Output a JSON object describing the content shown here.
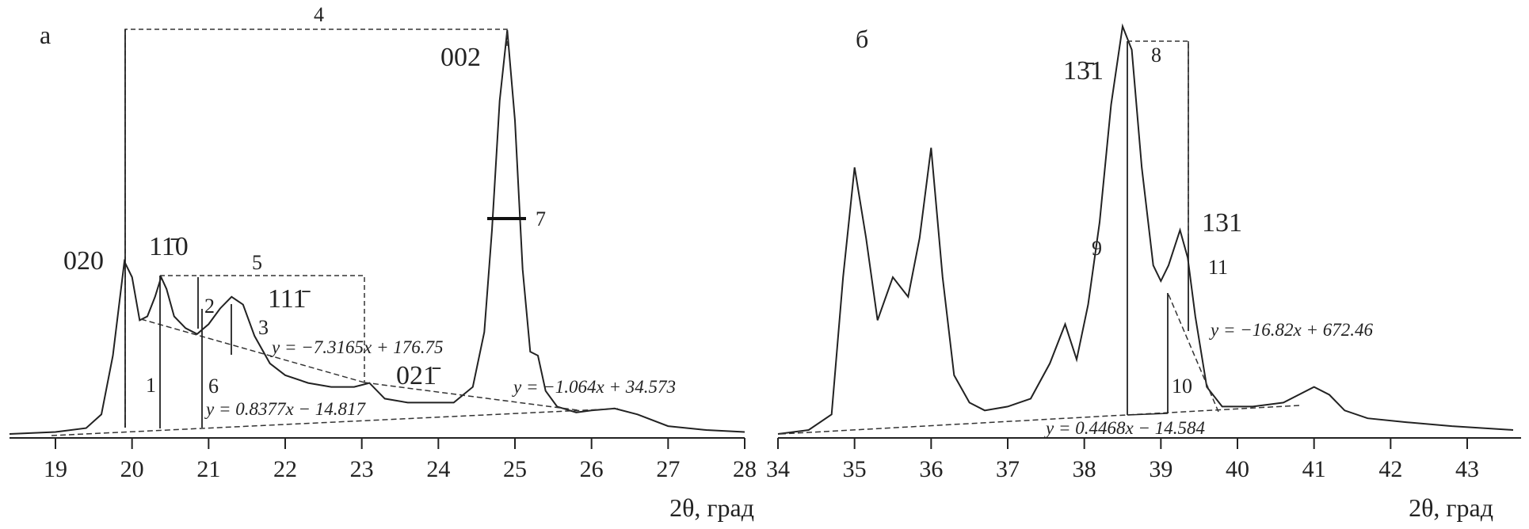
{
  "chart_data": [
    {
      "type": "line",
      "panel_label": "а",
      "xlabel": "2θ, град",
      "xlim": [
        18.4,
        28.0
      ],
      "ylim": [
        0,
        100
      ],
      "xticks": [
        19,
        20,
        21,
        22,
        23,
        24,
        25,
        26,
        27,
        28
      ],
      "x": [
        18.4,
        19.0,
        19.4,
        19.6,
        19.75,
        19.9,
        20.0,
        20.1,
        20.2,
        20.3,
        20.38,
        20.45,
        20.55,
        20.7,
        20.85,
        21.0,
        21.15,
        21.3,
        21.45,
        21.6,
        21.8,
        22.0,
        22.3,
        22.6,
        22.9,
        23.1,
        23.3,
        23.6,
        23.9,
        24.2,
        24.45,
        24.6,
        24.7,
        24.8,
        24.9,
        25.0,
        25.1,
        25.2,
        25.3,
        25.4,
        25.55,
        25.8,
        26.0,
        26.3,
        26.6,
        27.0,
        27.5,
        28.0
      ],
      "y": [
        0,
        0.5,
        1.5,
        5,
        20,
        44,
        40,
        29,
        30,
        35,
        40,
        37,
        30,
        27,
        25.5,
        28,
        32,
        35,
        33,
        25,
        18,
        15,
        13,
        12,
        12,
        13,
        9,
        8,
        8,
        8,
        12,
        26,
        52,
        85,
        103,
        80,
        42,
        21,
        20,
        11,
        7,
        5.5,
        6,
        6.5,
        5,
        2,
        1,
        0.5
      ],
      "peak_labels": [
        "020",
        "11̄0",
        "111̄",
        "002",
        "021̄"
      ],
      "marker_labels": [
        "1",
        "2",
        "3",
        "4",
        "5",
        "6",
        "7"
      ],
      "equations": [
        "y = −7.3165x + 176.75",
        "y = 0.8377x − 14.817",
        "y = −1.064x + 34.573"
      ]
    },
    {
      "type": "line",
      "panel_label": "б",
      "xlabel": "2θ, град",
      "xlim": [
        34.0,
        43.6
      ],
      "ylim": [
        0,
        100
      ],
      "xticks": [
        34,
        35,
        36,
        37,
        38,
        39,
        40,
        41,
        42,
        43
      ],
      "x": [
        34.0,
        34.4,
        34.7,
        34.85,
        35.0,
        35.15,
        35.3,
        35.5,
        35.7,
        35.85,
        36.0,
        36.15,
        36.3,
        36.5,
        36.7,
        37.0,
        37.3,
        37.55,
        37.75,
        37.9,
        38.05,
        38.2,
        38.35,
        38.5,
        38.62,
        38.75,
        38.9,
        39.0,
        39.1,
        39.25,
        39.35,
        39.45,
        39.6,
        39.8,
        40.0,
        40.2,
        40.6,
        41.0,
        41.2,
        41.4,
        41.7,
        42.2,
        42.8,
        43.6
      ],
      "y": [
        0,
        1,
        5,
        40,
        68,
        50,
        29,
        40,
        35,
        50,
        73,
        40,
        15,
        8,
        6,
        7,
        9,
        18,
        28,
        19,
        33,
        54,
        84,
        104,
        98,
        68,
        43,
        39,
        43,
        52,
        45,
        30,
        12,
        7,
        7,
        7,
        8,
        12,
        10,
        6,
        4,
        3,
        2,
        1
      ],
      "peak_labels": [
        "13̄1",
        "131"
      ],
      "marker_labels": [
        "8",
        "9",
        "10",
        "11"
      ],
      "equations": [
        "y = −16.82x + 672.46",
        "y = 0.4468x − 14.584"
      ]
    }
  ]
}
